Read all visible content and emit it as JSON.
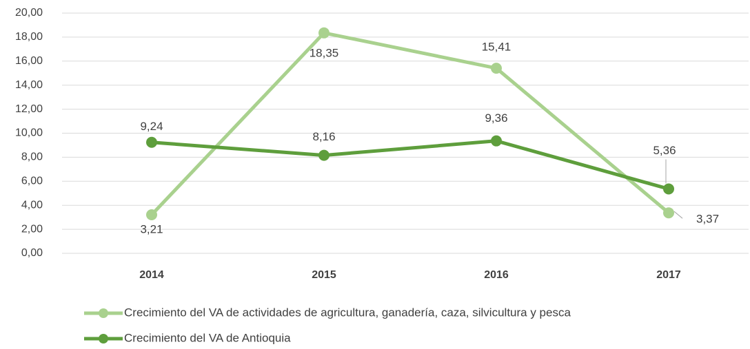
{
  "chart_data": {
    "type": "line",
    "categories": [
      "2014",
      "2015",
      "2016",
      "2017"
    ],
    "series": [
      {
        "name": "Crecimiento del VA de actividades de agricultura, ganadería, caza, silvicultura y pesca",
        "color": "#a9d18e",
        "values": [
          3.21,
          18.35,
          15.41,
          3.37
        ],
        "value_labels": [
          "3,21",
          "18,35",
          "15,41",
          "3,37"
        ]
      },
      {
        "name": "Crecimiento del VA de Antioquia",
        "color": "#5e9e3c",
        "values": [
          9.24,
          8.16,
          9.36,
          5.36
        ],
        "value_labels": [
          "9,24",
          "8,16",
          "9,36",
          "5,36"
        ]
      }
    ],
    "ylim": [
      0,
      20
    ],
    "yticks": [
      {
        "value": 0,
        "label": "0,00"
      },
      {
        "value": 2,
        "label": "2,00"
      },
      {
        "value": 4,
        "label": "4,00"
      },
      {
        "value": 6,
        "label": "6,00"
      },
      {
        "value": 8,
        "label": "8,00"
      },
      {
        "value": 10,
        "label": "10,00"
      },
      {
        "value": 12,
        "label": "12,00"
      },
      {
        "value": 14,
        "label": "14,00"
      },
      {
        "value": 16,
        "label": "16,00"
      },
      {
        "value": 18,
        "label": "18,00"
      },
      {
        "value": 20,
        "label": "20,00"
      }
    ],
    "grid": true,
    "legend": "bottom"
  }
}
